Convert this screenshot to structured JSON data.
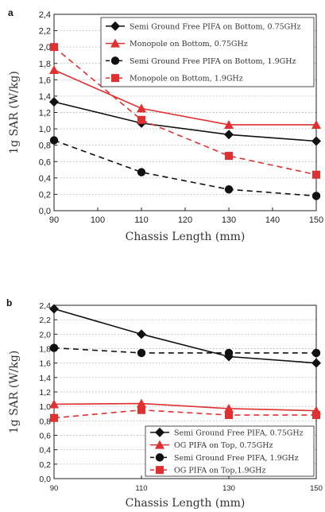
{
  "chart_data": [
    {
      "type": "line",
      "panel_label": "a",
      "xlabel": "Chassis Length (mm)",
      "ylabel": "1g SAR (W/kg)",
      "xlim": [
        90,
        150
      ],
      "ylim": [
        0.0,
        2.4
      ],
      "x_ticks": [
        "90",
        "100",
        "110",
        "120",
        "130",
        "140",
        "150"
      ],
      "y_ticks": [
        "0,0",
        "0,2",
        "0,4",
        "0,6",
        "0,8",
        "1,0",
        "1,2",
        "1,4",
        "1,6",
        "1,8",
        "2,0",
        "2,2",
        "2,4"
      ],
      "grid": "horizontal dotted",
      "legend_position": "top-right",
      "x": [
        90,
        110,
        130,
        150
      ],
      "series": [
        {
          "name": "Semi Ground Free PIFA on Bottom, 0.75GHz",
          "values": [
            1.33,
            1.07,
            0.93,
            0.85
          ],
          "color": "#111111",
          "marker": "diamond",
          "dash": "solid"
        },
        {
          "name": "Monopole on Bottom, 0.75GHz",
          "values": [
            1.72,
            1.25,
            1.05,
            1.05
          ],
          "color": "#e03030",
          "marker": "triangle",
          "dash": "solid"
        },
        {
          "name": "Semi Ground Free PIFA on Bottom, 1.9GHz",
          "values": [
            0.86,
            0.47,
            0.26,
            0.18
          ],
          "color": "#111111",
          "marker": "circle",
          "dash": "dashed"
        },
        {
          "name": "Monopole on Bottom, 1.9GHz",
          "values": [
            2.0,
            1.11,
            0.67,
            0.44
          ],
          "color": "#e03030",
          "marker": "square",
          "dash": "dashed"
        }
      ]
    },
    {
      "type": "line",
      "panel_label": "b",
      "xlabel": "Chassis Length (mm)",
      "ylabel": "1g SAR (W/kg)",
      "xlim": [
        90,
        150
      ],
      "ylim": [
        0.0,
        2.4
      ],
      "x_ticks": [
        "90",
        "110",
        "130",
        "150"
      ],
      "y_ticks": [
        "0,0",
        "0,2",
        "0,4",
        "0,6",
        "0,8",
        "1,0",
        "1,2",
        "1,4",
        "1,6",
        "1,8",
        "2,0",
        "2,2",
        "2,4"
      ],
      "grid": "horizontal dotted",
      "legend_position": "bottom-right",
      "x": [
        90,
        110,
        130,
        150
      ],
      "series": [
        {
          "name": "Semi Ground Free PIFA, 0.75GHz",
          "values": [
            2.35,
            2.0,
            1.69,
            1.6
          ],
          "color": "#111111",
          "marker": "diamond",
          "dash": "solid"
        },
        {
          "name": "OG PIFA on Top, 0.75GHz",
          "values": [
            1.03,
            1.04,
            0.97,
            0.94
          ],
          "color": "#e03030",
          "marker": "triangle",
          "dash": "solid"
        },
        {
          "name": "Semi Ground Free PIFA, 1.9GHz",
          "values": [
            1.81,
            1.74,
            1.74,
            1.74
          ],
          "color": "#111111",
          "marker": "circle",
          "dash": "dashed"
        },
        {
          "name": "OG PIFA on Top,1.9GHz",
          "values": [
            0.84,
            0.95,
            0.88,
            0.88
          ],
          "color": "#e03030",
          "marker": "square",
          "dash": "dashed"
        }
      ]
    }
  ]
}
